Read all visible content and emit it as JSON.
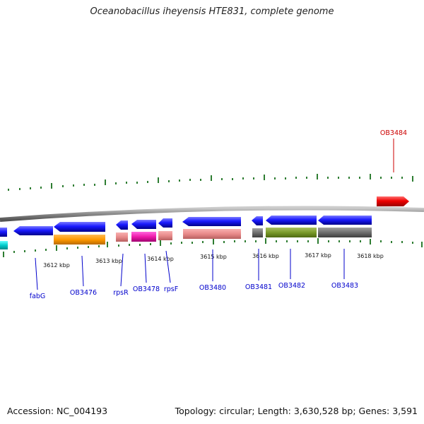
{
  "title": "Oceanobacillus iheyensis HTE831, complete genome",
  "accession": "Accession: NC_004193",
  "topology": "Topology: circular; Length: 3,630,528 bp; Genes: 3,591",
  "colors": {
    "forward_gene": "#dd0000",
    "reverse_gene": "#1a1aff",
    "label_blue": "#0000cc",
    "label_red": "#cc0000",
    "backbone": "#888888",
    "ticks": "#2e7d32"
  },
  "kbp_labels": [
    "3612 kbp",
    "3613 kbp",
    "3614 kbp",
    "3615 kbp",
    "3616 kbp",
    "3617 kbp",
    "3618 kbp"
  ],
  "gene_labels": {
    "ob3484": "OB3484",
    "fabg": "fabG",
    "ob3476": "OB3476",
    "rpsr": "rpsR",
    "ob3478": "OB3478",
    "rpsf": "rpsF",
    "ob3480": "OB3480",
    "ob3481": "OB3481",
    "ob3482": "OB3482",
    "ob3483": "OB3483"
  }
}
